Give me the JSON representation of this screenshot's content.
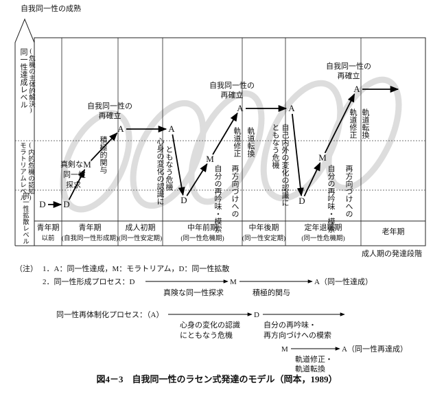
{
  "figure": {
    "y_axis_label": "自我同一性の成熟",
    "levels": [
      {
        "name": "同一性達成レベル",
        "note": "(危機の主体的解決)"
      },
      {
        "name": "モラトリアムレベル",
        "note": "(内的危機の認知)"
      },
      {
        "name": "同一性拡散レベル"
      }
    ],
    "stages": [
      {
        "lines": [
          "青年期",
          "以前"
        ]
      },
      {
        "lines": [
          "青年期",
          "(自我同一性形成期)"
        ]
      },
      {
        "lines": [
          "成人初期",
          "(同一性安定期)"
        ]
      },
      {
        "lines": [
          "中年前期",
          "(同一性危機期)"
        ]
      },
      {
        "lines": [
          "中年後期",
          "(同一性安定期)"
        ]
      },
      {
        "lines": [
          "定年退職期",
          "(同一性危機期)"
        ]
      },
      {
        "lines": [
          "老年期"
        ]
      }
    ],
    "x_axis_label": "成人期の発達段階",
    "points": [
      "D",
      "D",
      "M",
      "A",
      "A",
      "D",
      "M",
      "A",
      "A",
      "D",
      "M",
      "A"
    ],
    "annotations": {
      "search": [
        "真剣な",
        "同一性",
        "探求"
      ],
      "commitment": "積極的関与",
      "reestablish": [
        "自我同一性の",
        "再確立"
      ],
      "crisis1": [
        "心身の変化の認識に",
        "ともなう危機"
      ],
      "reexamine": [
        "再方向づけへの",
        "自分の再吟味・模索"
      ],
      "correction": [
        "軌道修正",
        "軌道転換"
      ],
      "crisis2": [
        "自己内外の変化の認識に",
        "ともなう危機"
      ]
    },
    "notes": {
      "prefix": "（注）",
      "line1": "1．A：同一性達成，M：モラトリアム，D：同一性拡散",
      "formation": {
        "label": "2．同一性形成プロセス：D",
        "m": "M",
        "a": "A（同一性達成）",
        "step1": "真険な同一性探求",
        "step2": "積極的関与"
      },
      "reorganization": {
        "label": "同一性再体制化プロセス：（A）",
        "d": "D",
        "step1": [
          "心身の変化の認識",
          "にともなう危機"
        ],
        "step2": [
          "自分の再吟味・",
          "再方向づけへの模索"
        ],
        "m": "M",
        "a": "A（同一性再達成）",
        "step3": [
          "軌道修正・",
          "軌道転換"
        ]
      }
    },
    "caption": "図4－3　自我同一性のラセン式発達のモデル（岡本，1989）"
  }
}
